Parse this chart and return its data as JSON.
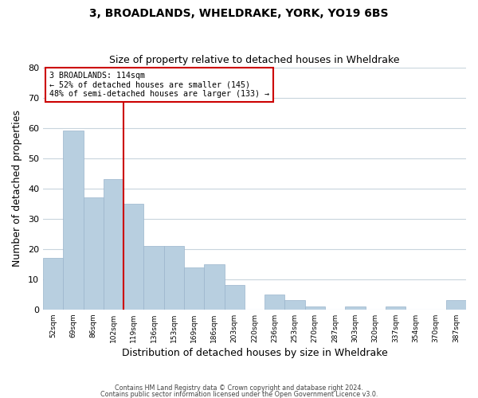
{
  "title": "3, BROADLANDS, WHELDRAKE, YORK, YO19 6BS",
  "subtitle": "Size of property relative to detached houses in Wheldrake",
  "xlabel": "Distribution of detached houses by size in Wheldrake",
  "ylabel": "Number of detached properties",
  "bar_color": "#b8cfe0",
  "bar_edge_color": "#9ab4cc",
  "bin_labels": [
    "52sqm",
    "69sqm",
    "86sqm",
    "102sqm",
    "119sqm",
    "136sqm",
    "153sqm",
    "169sqm",
    "186sqm",
    "203sqm",
    "220sqm",
    "236sqm",
    "253sqm",
    "270sqm",
    "287sqm",
    "303sqm",
    "320sqm",
    "337sqm",
    "354sqm",
    "370sqm",
    "387sqm"
  ],
  "bar_heights": [
    17,
    59,
    37,
    43,
    35,
    21,
    21,
    14,
    15,
    8,
    0,
    5,
    3,
    1,
    0,
    1,
    0,
    1,
    0,
    0,
    3
  ],
  "ylim": [
    0,
    80
  ],
  "yticks": [
    0,
    10,
    20,
    30,
    40,
    50,
    60,
    70,
    80
  ],
  "vline_x": 4,
  "vline_color": "#cc0000",
  "annotation_text": "3 BROADLANDS: 114sqm\n← 52% of detached houses are smaller (145)\n48% of semi-detached houses are larger (133) →",
  "annotation_box_color": "#ffffff",
  "annotation_box_edge_color": "#cc0000",
  "footer_line1": "Contains HM Land Registry data © Crown copyright and database right 2024.",
  "footer_line2": "Contains public sector information licensed under the Open Government Licence v3.0.",
  "background_color": "#ffffff",
  "plot_background_color": "#ffffff",
  "grid_color": "#c8d4dc"
}
